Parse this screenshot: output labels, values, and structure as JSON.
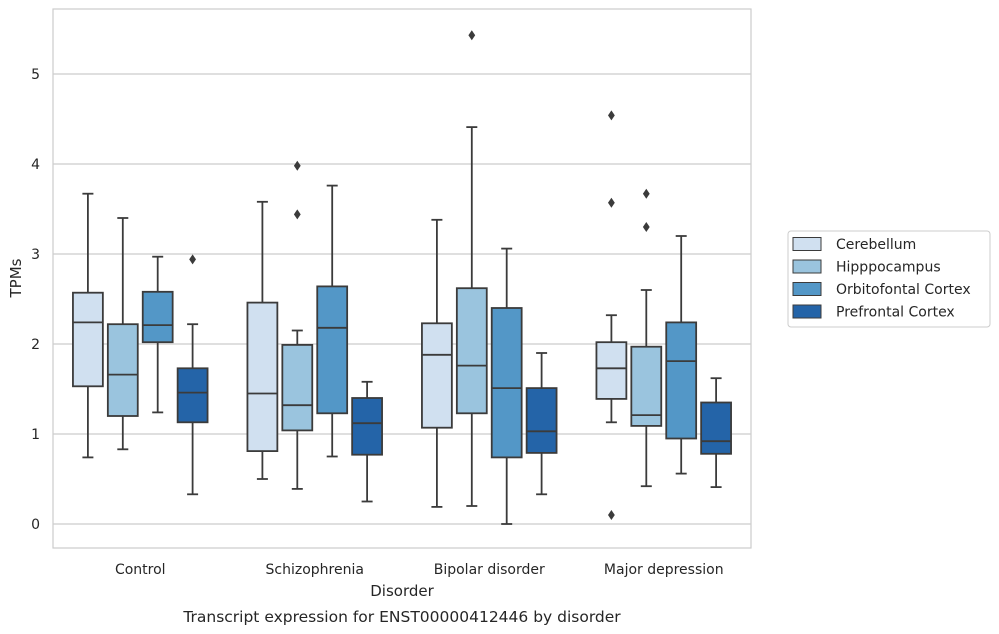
{
  "chart_data": {
    "type": "box",
    "xlabel": "Disorder",
    "ylabel": "TPMs",
    "caption": "Transcript expression for ENST00000412446 by disorder",
    "ylim": [
      -0.25,
      5.75
    ],
    "yticks": [
      "0",
      "1",
      "2",
      "3",
      "4",
      "5"
    ],
    "categories": [
      "Control",
      "Schizophrenia",
      "Bipolar disorder",
      "Major depression"
    ],
    "grid": "horizontal",
    "legend_position": "right",
    "series": [
      {
        "name": "Cerebellum",
        "color": "#d0e0f0",
        "boxes": [
          {
            "whislo": 0.74,
            "q1": 1.53,
            "med": 2.24,
            "q3": 2.57,
            "whishi": 3.67,
            "fliers": []
          },
          {
            "whislo": 0.5,
            "q1": 0.81,
            "med": 1.45,
            "q3": 2.46,
            "whishi": 3.58,
            "fliers": []
          },
          {
            "whislo": 0.19,
            "q1": 1.07,
            "med": 1.88,
            "q3": 2.23,
            "whishi": 3.38,
            "fliers": []
          },
          {
            "whislo": 1.13,
            "q1": 1.39,
            "med": 1.73,
            "q3": 2.02,
            "whishi": 2.32,
            "fliers": [
              4.54,
              3.57,
              0.1
            ]
          }
        ]
      },
      {
        "name": "Hipppocampus",
        "color": "#9ac4de",
        "boxes": [
          {
            "whislo": 0.83,
            "q1": 1.2,
            "med": 1.66,
            "q3": 2.22,
            "whishi": 3.4,
            "fliers": []
          },
          {
            "whislo": 0.39,
            "q1": 1.04,
            "med": 1.32,
            "q3": 1.99,
            "whishi": 2.15,
            "fliers": [
              3.98,
              3.44
            ]
          },
          {
            "whislo": 0.2,
            "q1": 1.23,
            "med": 1.76,
            "q3": 2.62,
            "whishi": 4.41,
            "fliers": [
              5.43
            ]
          },
          {
            "whislo": 0.42,
            "q1": 1.09,
            "med": 1.21,
            "q3": 1.97,
            "whishi": 2.6,
            "fliers": [
              3.67,
              3.3
            ]
          }
        ]
      },
      {
        "name": "Orbitofontal Cortex",
        "color": "#5397c7",
        "boxes": [
          {
            "whislo": 1.24,
            "q1": 2.02,
            "med": 2.21,
            "q3": 2.58,
            "whishi": 2.97,
            "fliers": []
          },
          {
            "whislo": 0.75,
            "q1": 1.23,
            "med": 2.18,
            "q3": 2.64,
            "whishi": 3.76,
            "fliers": []
          },
          {
            "whislo": 0.0,
            "q1": 0.74,
            "med": 1.51,
            "q3": 2.4,
            "whishi": 3.06,
            "fliers": []
          },
          {
            "whislo": 0.56,
            "q1": 0.95,
            "med": 1.81,
            "q3": 2.24,
            "whishi": 3.2,
            "fliers": []
          }
        ]
      },
      {
        "name": "Prefrontal Cortex",
        "color": "#2464a8",
        "boxes": [
          {
            "whislo": 0.33,
            "q1": 1.13,
            "med": 1.46,
            "q3": 1.73,
            "whishi": 2.22,
            "fliers": [
              2.94
            ]
          },
          {
            "whislo": 0.25,
            "q1": 0.77,
            "med": 1.12,
            "q3": 1.4,
            "whishi": 1.58,
            "fliers": []
          },
          {
            "whislo": 0.33,
            "q1": 0.79,
            "med": 1.03,
            "q3": 1.51,
            "whishi": 1.9,
            "fliers": []
          },
          {
            "whislo": 0.41,
            "q1": 0.78,
            "med": 0.92,
            "q3": 1.35,
            "whishi": 1.62,
            "fliers": []
          }
        ]
      }
    ]
  }
}
